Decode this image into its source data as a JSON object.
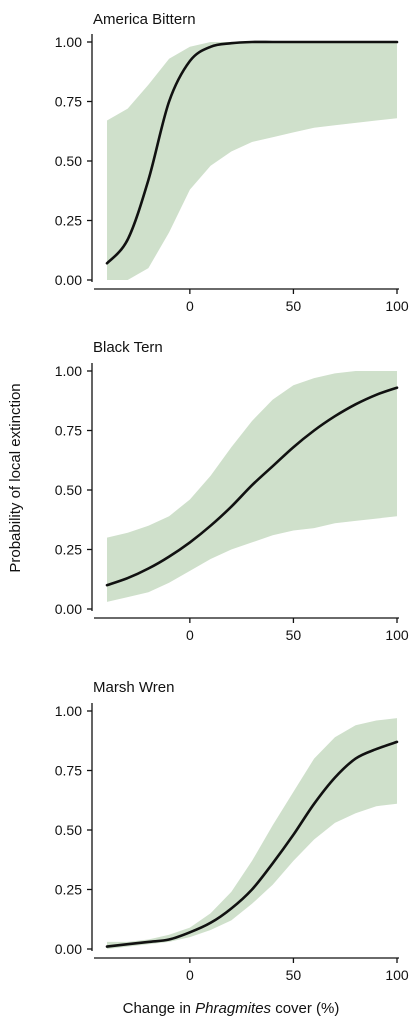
{
  "colors": {
    "band": "#cfe0cb",
    "curve": "#111111",
    "axis": "#111111"
  },
  "axis_titles": {
    "y": "Probability of local extinction",
    "x_prefix": "Change in ",
    "x_italic": "Phragmites",
    "x_suffix": " cover (%)"
  },
  "chart_data": [
    {
      "type": "line",
      "title": "America Bittern",
      "xlim": [
        -40,
        100
      ],
      "ylim": [
        0,
        1
      ],
      "x_ticks": [
        0,
        50,
        100
      ],
      "y_ticks": [
        "0.00",
        "0.25",
        "0.50",
        "0.75",
        "1.00"
      ],
      "x": [
        -40,
        -30,
        -20,
        -10,
        0,
        10,
        20,
        30,
        40,
        50,
        60,
        70,
        80,
        90,
        100
      ],
      "y": [
        0.07,
        0.17,
        0.42,
        0.75,
        0.92,
        0.98,
        0.995,
        1.0,
        1.0,
        1.0,
        1.0,
        1.0,
        1.0,
        1.0,
        1.0
      ],
      "lower": [
        0.0,
        0.0,
        0.05,
        0.2,
        0.38,
        0.48,
        0.54,
        0.58,
        0.6,
        0.62,
        0.64,
        0.65,
        0.66,
        0.67,
        0.68
      ],
      "upper": [
        0.67,
        0.72,
        0.82,
        0.93,
        0.98,
        1.0,
        1.0,
        1.0,
        1.0,
        1.0,
        1.0,
        1.0,
        1.0,
        1.0,
        1.0
      ]
    },
    {
      "type": "line",
      "title": "Black Tern",
      "xlim": [
        -40,
        100
      ],
      "ylim": [
        0,
        1
      ],
      "x_ticks": [
        0,
        50,
        100
      ],
      "y_ticks": [
        "0.00",
        "0.25",
        "0.50",
        "0.75",
        "1.00"
      ],
      "x": [
        -40,
        -30,
        -20,
        -10,
        0,
        10,
        20,
        30,
        40,
        50,
        60,
        70,
        80,
        90,
        100
      ],
      "y": [
        0.1,
        0.13,
        0.17,
        0.22,
        0.28,
        0.35,
        0.43,
        0.52,
        0.6,
        0.68,
        0.75,
        0.81,
        0.86,
        0.9,
        0.93
      ],
      "lower": [
        0.03,
        0.05,
        0.07,
        0.11,
        0.16,
        0.21,
        0.25,
        0.28,
        0.31,
        0.33,
        0.34,
        0.36,
        0.37,
        0.38,
        0.39
      ],
      "upper": [
        0.3,
        0.32,
        0.35,
        0.39,
        0.46,
        0.56,
        0.68,
        0.79,
        0.88,
        0.94,
        0.97,
        0.99,
        1.0,
        1.0,
        1.0
      ]
    },
    {
      "type": "line",
      "title": "Marsh Wren",
      "xlim": [
        -40,
        100
      ],
      "ylim": [
        0,
        1
      ],
      "x_ticks": [
        0,
        50,
        100
      ],
      "y_ticks": [
        "0.00",
        "0.25",
        "0.50",
        "0.75",
        "1.00"
      ],
      "x": [
        -40,
        -30,
        -20,
        -10,
        0,
        10,
        20,
        30,
        40,
        50,
        60,
        70,
        80,
        90,
        100
      ],
      "y": [
        0.01,
        0.02,
        0.03,
        0.04,
        0.07,
        0.11,
        0.17,
        0.25,
        0.36,
        0.48,
        0.61,
        0.72,
        0.8,
        0.84,
        0.87
      ],
      "lower": [
        0.0,
        0.01,
        0.02,
        0.03,
        0.05,
        0.08,
        0.12,
        0.19,
        0.27,
        0.37,
        0.46,
        0.53,
        0.57,
        0.6,
        0.61
      ],
      "upper": [
        0.03,
        0.03,
        0.04,
        0.06,
        0.09,
        0.15,
        0.24,
        0.37,
        0.52,
        0.66,
        0.8,
        0.89,
        0.94,
        0.96,
        0.97
      ]
    }
  ]
}
